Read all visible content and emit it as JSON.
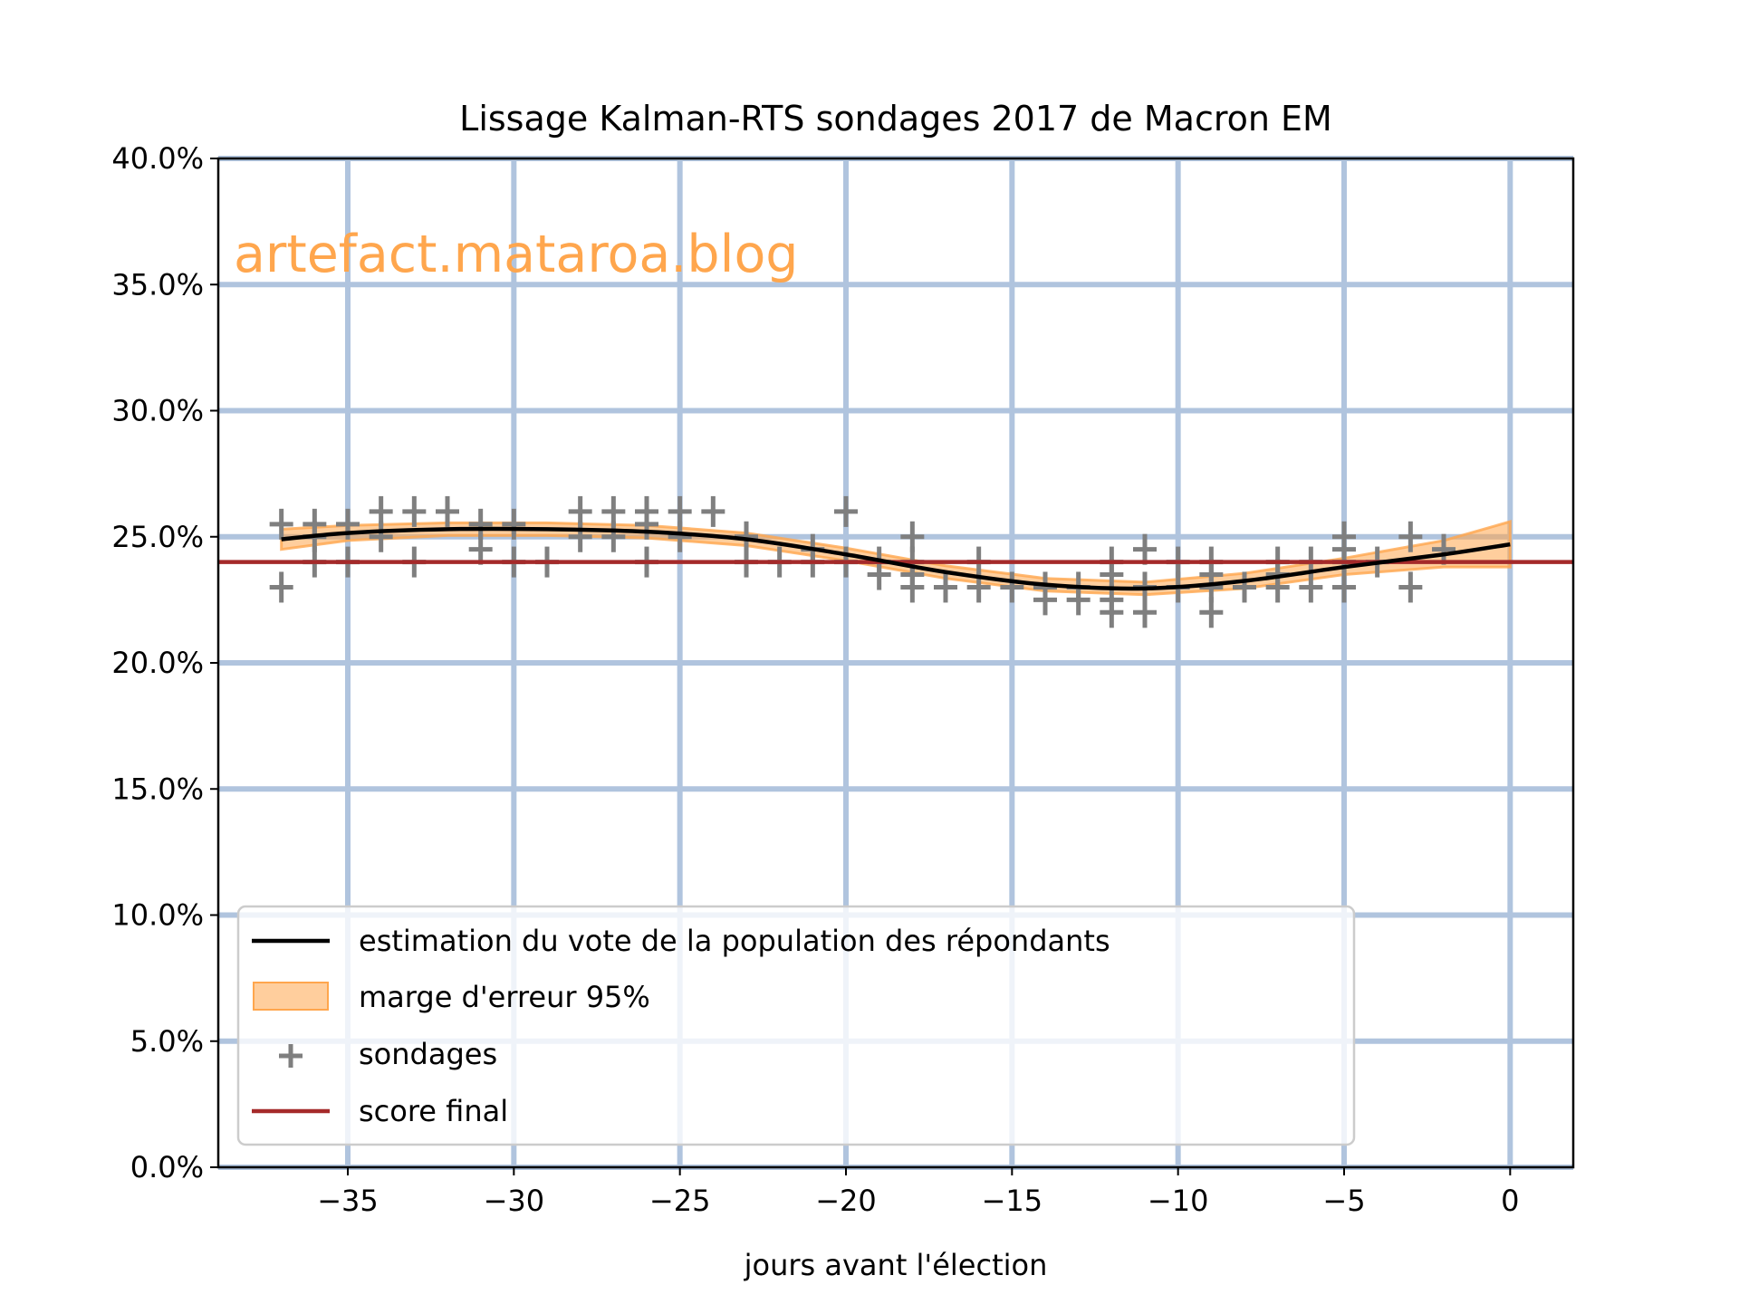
{
  "chart_data": {
    "type": "line",
    "title": "Lissage Kalman-RTS sondages 2017 de Macron EM",
    "xlabel": "jours avant l'élection",
    "ylabel": "",
    "xlim": [
      -38.9,
      1.9
    ],
    "ylim": [
      0,
      40
    ],
    "xticks": [
      -35,
      -30,
      -25,
      -20,
      -15,
      -10,
      -5,
      0
    ],
    "xtick_labels": [
      "−35",
      "−30",
      "−25",
      "−20",
      "−15",
      "−10",
      "−5",
      "0"
    ],
    "yticks": [
      0,
      5,
      10,
      15,
      20,
      25,
      30,
      35,
      40
    ],
    "ytick_labels": [
      "0.0%",
      "5.0%",
      "10.0%",
      "15.0%",
      "20.0%",
      "25.0%",
      "30.0%",
      "35.0%",
      "40.0%"
    ],
    "grid": true,
    "watermark": "artefact.mataroa.blog",
    "legend_placement": "lower-left",
    "colors": {
      "estimate": "#000000",
      "band": "#ffa64d",
      "polls": "#7f7f7f",
      "final": "#a52a2a",
      "grid": "#b0c4de",
      "watermark": "#ffa64d"
    },
    "series": [
      {
        "name": "estimation du vote de la population des répondants",
        "kind": "line",
        "x": [
          -37,
          -35,
          -32,
          -29,
          -26,
          -23,
          -20,
          -17,
          -14,
          -11,
          -8,
          -5,
          -2,
          0
        ],
        "y": [
          24.9,
          25.15,
          25.3,
          25.3,
          25.2,
          24.9,
          24.3,
          23.6,
          23.1,
          22.95,
          23.25,
          23.8,
          24.3,
          24.7
        ]
      },
      {
        "name": "marge d'erreur 95%",
        "kind": "band",
        "x": [
          -37,
          -35,
          -32,
          -29,
          -26,
          -23,
          -20,
          -17,
          -14,
          -11,
          -8,
          -5,
          -2,
          0
        ],
        "lower": [
          24.5,
          24.85,
          25.05,
          25.05,
          24.95,
          24.65,
          24.05,
          23.35,
          22.85,
          22.7,
          22.95,
          23.5,
          23.8,
          23.8
        ],
        "upper": [
          25.3,
          25.45,
          25.55,
          25.55,
          25.45,
          25.15,
          24.55,
          23.85,
          23.35,
          23.2,
          23.55,
          24.15,
          24.85,
          25.6
        ]
      },
      {
        "name": "sondages",
        "kind": "scatter",
        "points": [
          [
            -37,
            25.5
          ],
          [
            -37,
            23
          ],
          [
            -36,
            25.5
          ],
          [
            -36,
            25
          ],
          [
            -36,
            24
          ],
          [
            -35,
            25.5
          ],
          [
            -35,
            24
          ],
          [
            -34,
            26
          ],
          [
            -34,
            25
          ],
          [
            -33,
            26
          ],
          [
            -33,
            24
          ],
          [
            -32,
            26
          ],
          [
            -31,
            25.5
          ],
          [
            -31,
            24.5
          ],
          [
            -30,
            25.5
          ],
          [
            -30,
            24
          ],
          [
            -29,
            24
          ],
          [
            -28,
            26
          ],
          [
            -28,
            25
          ],
          [
            -27,
            26
          ],
          [
            -27,
            25
          ],
          [
            -26,
            26
          ],
          [
            -26,
            25.5
          ],
          [
            -26,
            24
          ],
          [
            -25,
            26
          ],
          [
            -25,
            25
          ],
          [
            -24,
            26
          ],
          [
            -23,
            25
          ],
          [
            -23,
            24
          ],
          [
            -22,
            24
          ],
          [
            -21,
            24.5
          ],
          [
            -21,
            24
          ],
          [
            -20,
            26
          ],
          [
            -20,
            24
          ],
          [
            -19,
            24
          ],
          [
            -19,
            23.5
          ],
          [
            -18,
            25
          ],
          [
            -18,
            24
          ],
          [
            -18,
            23.5
          ],
          [
            -18,
            23
          ],
          [
            -17,
            23
          ],
          [
            -16,
            24
          ],
          [
            -16,
            23
          ],
          [
            -15,
            23
          ],
          [
            -14,
            23
          ],
          [
            -14,
            22.5
          ],
          [
            -13,
            23
          ],
          [
            -13,
            22.5
          ],
          [
            -12,
            24
          ],
          [
            -12,
            23.5
          ],
          [
            -12,
            22.5
          ],
          [
            -12,
            22
          ],
          [
            -11,
            24.5
          ],
          [
            -11,
            23
          ],
          [
            -11,
            22
          ],
          [
            -10,
            24
          ],
          [
            -10,
            23
          ],
          [
            -9,
            24
          ],
          [
            -9,
            23.5
          ],
          [
            -9,
            23
          ],
          [
            -9,
            22
          ],
          [
            -8,
            23
          ],
          [
            -7,
            24
          ],
          [
            -7,
            23.5
          ],
          [
            -7,
            23
          ],
          [
            -6,
            24
          ],
          [
            -6,
            23
          ],
          [
            -5,
            25
          ],
          [
            -5,
            24.5
          ],
          [
            -5,
            24
          ],
          [
            -5,
            23
          ],
          [
            -4,
            24
          ],
          [
            -3,
            25
          ],
          [
            -3,
            23
          ],
          [
            -2,
            24.5
          ]
        ]
      },
      {
        "name": "score final",
        "kind": "hline",
        "y": 24.0
      }
    ]
  }
}
